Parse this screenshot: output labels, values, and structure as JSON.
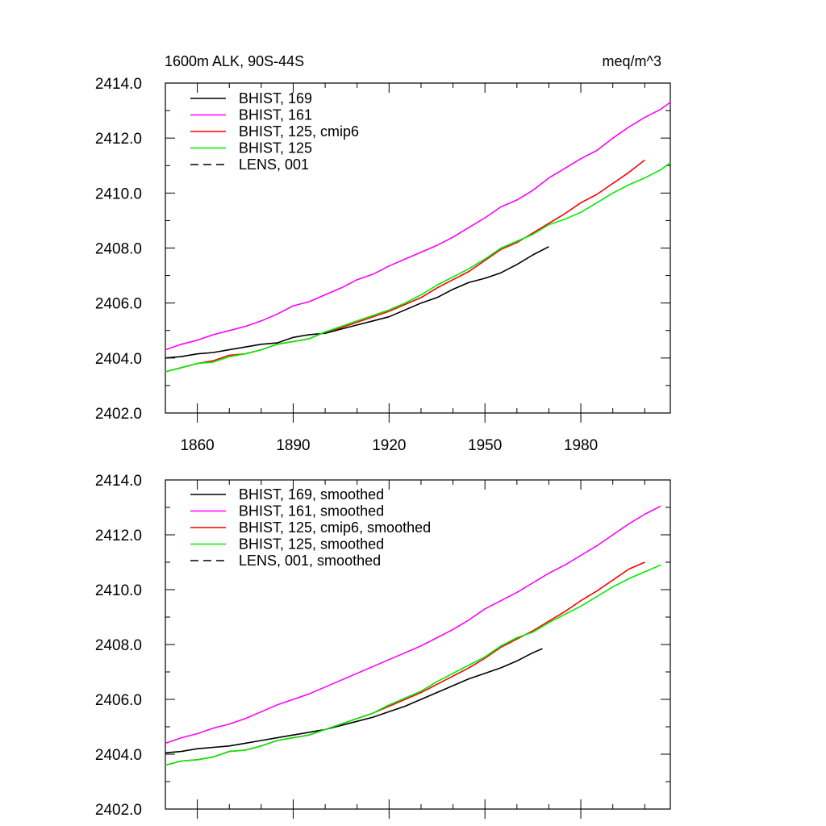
{
  "chart_data": [
    {
      "type": "line",
      "title_left": "1600m ALK, 90S-44S",
      "title_right": "meq/m^3",
      "xlabel": "",
      "ylabel": "",
      "xlim": [
        1850,
        2008
      ],
      "ylim": [
        2402,
        2414
      ],
      "x_ticks": [
        1860,
        1890,
        1920,
        1950,
        1980
      ],
      "x_tick_labels": [
        "1860",
        "1890",
        "1920",
        "1950",
        "1980"
      ],
      "y_ticks": [
        2402,
        2404,
        2406,
        2408,
        2410,
        2412,
        2414
      ],
      "y_tick_labels": [
        "2402.0",
        "2404.0",
        "2406.0",
        "2408.0",
        "2410.0",
        "2412.0",
        "2414.0"
      ],
      "legend_placement": "top-left",
      "grid": false,
      "series": [
        {
          "name": "BHIST, 169",
          "color": "#000000",
          "dash": "solid",
          "x": [
            1850,
            1855,
            1860,
            1865,
            1870,
            1875,
            1880,
            1885,
            1890,
            1895,
            1900,
            1905,
            1910,
            1915,
            1920,
            1925,
            1930,
            1935,
            1940,
            1945,
            1950,
            1955,
            1960,
            1965,
            1970
          ],
          "y": [
            2404.0,
            2404.05,
            2404.15,
            2404.2,
            2404.3,
            2404.4,
            2404.5,
            2404.55,
            2404.75,
            2404.85,
            2404.9,
            2405.05,
            2405.2,
            2405.35,
            2405.5,
            2405.75,
            2406.0,
            2406.2,
            2406.5,
            2406.75,
            2406.9,
            2407.1,
            2407.4,
            2407.75,
            2408.05
          ]
        },
        {
          "name": "BHIST, 161",
          "color": "#ff00ff",
          "dash": "solid",
          "x": [
            1850,
            1855,
            1860,
            1865,
            1870,
            1875,
            1880,
            1885,
            1890,
            1895,
            1900,
            1905,
            1910,
            1915,
            1920,
            1925,
            1930,
            1935,
            1940,
            1945,
            1950,
            1955,
            1960,
            1965,
            1970,
            1975,
            1980,
            1985,
            1990,
            1995,
            2000,
            2005,
            2008
          ],
          "y": [
            2404.3,
            2404.5,
            2404.65,
            2404.85,
            2405.0,
            2405.15,
            2405.35,
            2405.6,
            2405.9,
            2406.05,
            2406.3,
            2406.55,
            2406.85,
            2407.05,
            2407.35,
            2407.6,
            2407.85,
            2408.1,
            2408.4,
            2408.75,
            2409.1,
            2409.5,
            2409.75,
            2410.1,
            2410.55,
            2410.9,
            2411.25,
            2411.55,
            2412.0,
            2412.4,
            2412.75,
            2413.05,
            2413.3
          ]
        },
        {
          "name": "BHIST, 125, cmip6",
          "color": "#ff0000",
          "dash": "solid",
          "x": [
            1850,
            1855,
            1860,
            1865,
            1870,
            1875,
            1880,
            1885,
            1890,
            1895,
            1900,
            1905,
            1910,
            1915,
            1920,
            1925,
            1930,
            1935,
            1940,
            1945,
            1950,
            1955,
            1960,
            1965,
            1970,
            1975,
            1980,
            1985,
            1990,
            1995,
            2000
          ],
          "y": [
            2403.5,
            2403.65,
            2403.8,
            2403.9,
            2404.1,
            2404.15,
            2404.3,
            2404.5,
            2404.6,
            2404.7,
            2404.95,
            2405.1,
            2405.3,
            2405.5,
            2405.7,
            2405.95,
            2406.2,
            2406.55,
            2406.85,
            2407.15,
            2407.55,
            2407.95,
            2408.2,
            2408.55,
            2408.9,
            2409.25,
            2409.65,
            2409.95,
            2410.35,
            2410.75,
            2411.2
          ]
        },
        {
          "name": "BHIST, 125",
          "color": "#00ee00",
          "dash": "solid",
          "x": [
            1850,
            1855,
            1860,
            1865,
            1870,
            1875,
            1880,
            1885,
            1890,
            1895,
            1900,
            1905,
            1910,
            1915,
            1920,
            1925,
            1930,
            1935,
            1940,
            1945,
            1950,
            1955,
            1960,
            1965,
            1970,
            1975,
            1980,
            1985,
            1990,
            1995,
            2000,
            2005,
            2008
          ],
          "y": [
            2403.5,
            2403.65,
            2403.8,
            2403.85,
            2404.05,
            2404.15,
            2404.3,
            2404.5,
            2404.6,
            2404.7,
            2404.95,
            2405.15,
            2405.35,
            2405.55,
            2405.75,
            2406.0,
            2406.3,
            2406.65,
            2406.95,
            2407.25,
            2407.6,
            2408.0,
            2408.25,
            2408.5,
            2408.85,
            2409.05,
            2409.3,
            2409.65,
            2410.0,
            2410.3,
            2410.55,
            2410.85,
            2411.1
          ]
        },
        {
          "name": "LENS, 001",
          "color": "#000000",
          "dash": "dashed",
          "x": [],
          "y": []
        }
      ]
    },
    {
      "type": "line",
      "title_left": "",
      "title_right": "",
      "xlabel": "",
      "ylabel": "",
      "xlim": [
        1850,
        2008
      ],
      "ylim": [
        2402,
        2414
      ],
      "x_ticks": [
        1860,
        1890,
        1920,
        1950,
        1980
      ],
      "x_tick_labels": [],
      "y_ticks": [
        2402,
        2404,
        2406,
        2408,
        2410,
        2412,
        2414
      ],
      "y_tick_labels": [
        "2402.0",
        "2404.0",
        "2406.0",
        "2408.0",
        "2410.0",
        "2412.0",
        "2414.0"
      ],
      "legend_placement": "top-left",
      "grid": false,
      "series": [
        {
          "name": "BHIST, 169, smoothed",
          "color": "#000000",
          "dash": "solid",
          "x": [
            1850,
            1855,
            1860,
            1865,
            1870,
            1875,
            1880,
            1885,
            1890,
            1895,
            1900,
            1905,
            1910,
            1915,
            1920,
            1925,
            1930,
            1935,
            1940,
            1945,
            1950,
            1955,
            1960,
            1965,
            1968
          ],
          "y": [
            2404.05,
            2404.1,
            2404.2,
            2404.25,
            2404.3,
            2404.4,
            2404.5,
            2404.6,
            2404.7,
            2404.8,
            2404.9,
            2405.05,
            2405.2,
            2405.35,
            2405.55,
            2405.75,
            2406.0,
            2406.25,
            2406.5,
            2406.75,
            2406.95,
            2407.15,
            2407.4,
            2407.7,
            2407.85
          ]
        },
        {
          "name": "BHIST, 161, smoothed",
          "color": "#ff00ff",
          "dash": "solid",
          "x": [
            1850,
            1855,
            1860,
            1865,
            1870,
            1875,
            1880,
            1885,
            1890,
            1895,
            1900,
            1905,
            1910,
            1915,
            1920,
            1925,
            1930,
            1935,
            1940,
            1945,
            1950,
            1955,
            1960,
            1965,
            1970,
            1975,
            1980,
            1985,
            1990,
            1995,
            2000,
            2005
          ],
          "y": [
            2404.4,
            2404.6,
            2404.75,
            2404.95,
            2405.1,
            2405.3,
            2405.55,
            2405.8,
            2406.0,
            2406.2,
            2406.45,
            2406.7,
            2406.95,
            2407.2,
            2407.45,
            2407.7,
            2407.95,
            2408.25,
            2408.55,
            2408.9,
            2409.3,
            2409.6,
            2409.9,
            2410.25,
            2410.6,
            2410.9,
            2411.25,
            2411.6,
            2412.0,
            2412.4,
            2412.75,
            2413.05
          ]
        },
        {
          "name": "BHIST, 125, cmip6, smoothed",
          "color": "#ff0000",
          "dash": "solid",
          "x": [
            1850,
            1855,
            1860,
            1865,
            1870,
            1875,
            1880,
            1885,
            1890,
            1895,
            1900,
            1905,
            1910,
            1915,
            1920,
            1925,
            1930,
            1935,
            1940,
            1945,
            1950,
            1955,
            1960,
            1965,
            1970,
            1975,
            1980,
            1985,
            1990,
            1995,
            2000
          ],
          "y": [
            2403.6,
            2403.75,
            2403.8,
            2403.9,
            2404.1,
            2404.15,
            2404.3,
            2404.5,
            2404.6,
            2404.7,
            2404.9,
            2405.1,
            2405.3,
            2405.5,
            2405.75,
            2406.0,
            2406.25,
            2406.55,
            2406.85,
            2407.15,
            2407.5,
            2407.9,
            2408.2,
            2408.5,
            2408.85,
            2409.2,
            2409.6,
            2409.95,
            2410.35,
            2410.75,
            2411.0
          ]
        },
        {
          "name": "BHIST, 125, smoothed",
          "color": "#00ee00",
          "dash": "solid",
          "x": [
            1850,
            1855,
            1860,
            1865,
            1870,
            1875,
            1880,
            1885,
            1890,
            1895,
            1900,
            1905,
            1910,
            1915,
            1920,
            1925,
            1930,
            1935,
            1940,
            1945,
            1950,
            1955,
            1960,
            1965,
            1970,
            1975,
            1980,
            1985,
            1990,
            1995,
            2000,
            2005
          ],
          "y": [
            2403.6,
            2403.75,
            2403.8,
            2403.9,
            2404.1,
            2404.15,
            2404.3,
            2404.5,
            2404.6,
            2404.7,
            2404.9,
            2405.1,
            2405.3,
            2405.5,
            2405.8,
            2406.05,
            2406.3,
            2406.65,
            2406.95,
            2407.25,
            2407.55,
            2407.95,
            2408.25,
            2408.45,
            2408.8,
            2409.1,
            2409.4,
            2409.75,
            2410.1,
            2410.4,
            2410.65,
            2410.9
          ]
        },
        {
          "name": "LENS, 001, smoothed",
          "color": "#000000",
          "dash": "dashed",
          "x": [],
          "y": []
        }
      ]
    }
  ]
}
